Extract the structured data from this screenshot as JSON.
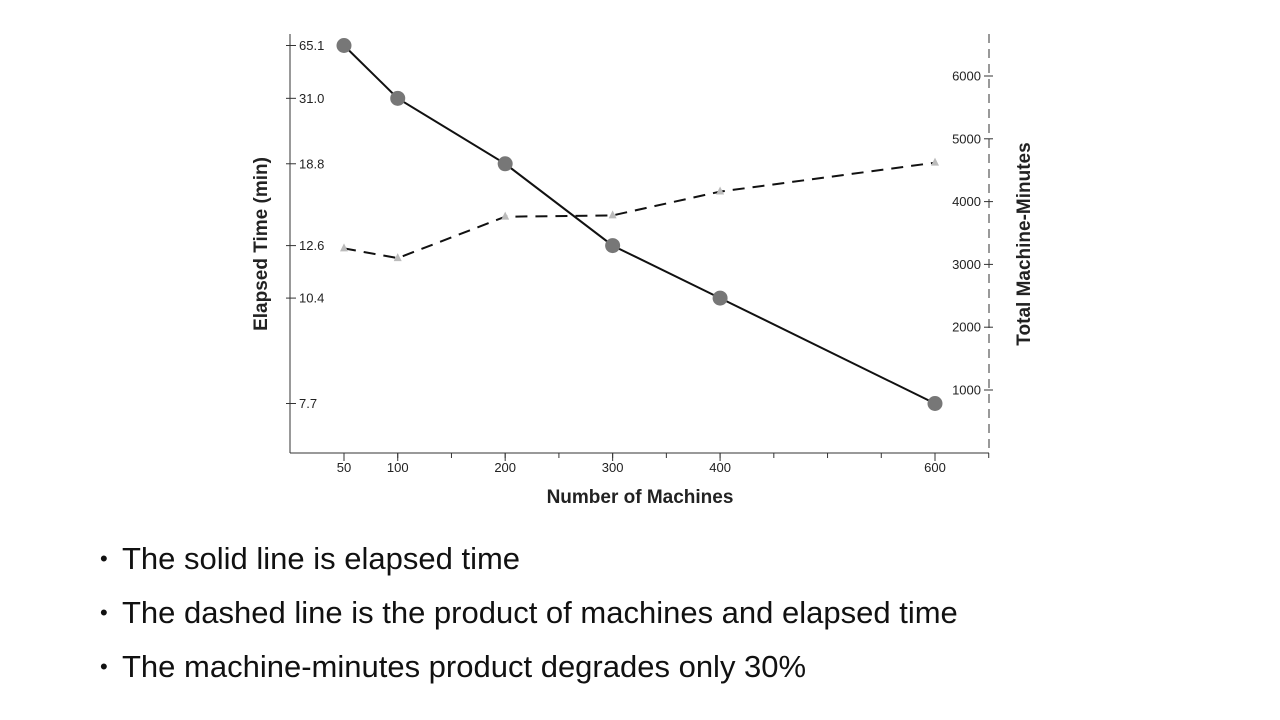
{
  "chart_data": {
    "type": "line",
    "xlabel": "Number of Machines",
    "ylabel": "Elapsed Time (min)",
    "y2label": "Total Machine-Minutes",
    "x_ticks": [
      50,
      100,
      200,
      300,
      400,
      600
    ],
    "y_ticks": [
      "65.1",
      "31.0",
      "18.8",
      "12.6",
      "10.4",
      "7.7"
    ],
    "y2_ticks": [
      "1000",
      "2000",
      "3000",
      "4000",
      "5000",
      "6000"
    ],
    "y2lim": [
      0,
      6600
    ],
    "series": [
      {
        "axis": "left",
        "style": "solid",
        "marker": "circle",
        "x": [
          50,
          100,
          200,
          300,
          400,
          600
        ],
        "y": [
          65.1,
          31.0,
          18.8,
          12.6,
          10.4,
          7.7
        ]
      },
      {
        "axis": "right",
        "style": "dashed",
        "marker": "triangle",
        "x": [
          50,
          100,
          200,
          300,
          400,
          600
        ],
        "y": [
          3255,
          3100,
          3760,
          3780,
          4160,
          4620
        ]
      }
    ],
    "grid": false,
    "colors": {
      "line": "#111111",
      "marker_circle": "#777777",
      "marker_triangle": "#bbbbbb"
    }
  },
  "bullets": [
    "The solid line is elapsed time",
    "The dashed line is the product of machines and elapsed time",
    "The machine-minutes product degrades only 30%"
  ]
}
